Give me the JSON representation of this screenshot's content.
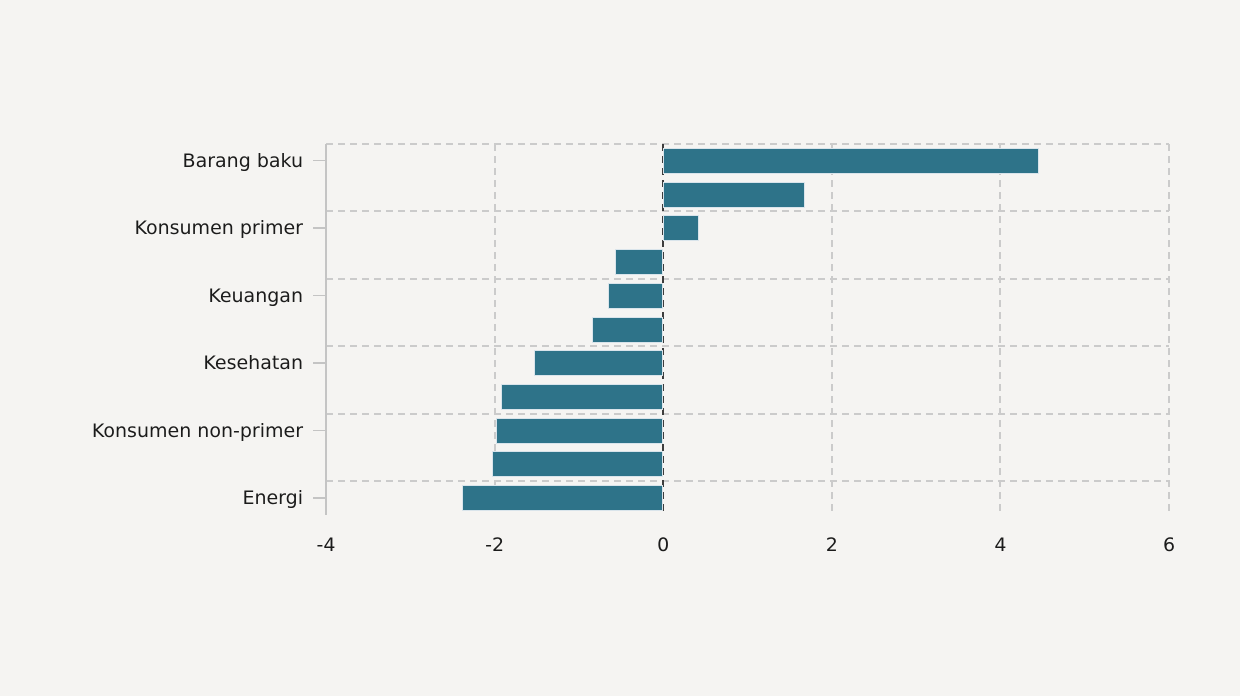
{
  "figure": {
    "background_color": "#f5f4f2",
    "text_color": "#1b1b1b",
    "gridline_color": "#cbcbcb",
    "zero_line_color": "#3d3d3d"
  },
  "chart_data": {
    "type": "bar",
    "orientation": "horizontal",
    "title": "",
    "xlabel": "",
    "ylabel": "",
    "xlim": [
      -4,
      6
    ],
    "x_ticks": [
      "-4",
      "-2",
      "0",
      "2",
      "4",
      "6"
    ],
    "x_tick_values": [
      -4,
      -2,
      0,
      2,
      4,
      6
    ],
    "grid": true,
    "zero_line": true,
    "legend": false,
    "bar_color": "#2e7389",
    "bar_edge_color": "#d9e4eb",
    "bars": [
      {
        "label": "Barang baku",
        "value": 4.46
      },
      {
        "label": "",
        "value": 1.68
      },
      {
        "label": "Konsumen primer",
        "value": 0.42
      },
      {
        "label": "",
        "value": -0.57
      },
      {
        "label": "Keuangan",
        "value": -0.66
      },
      {
        "label": "",
        "value": -0.85
      },
      {
        "label": "Kesehatan",
        "value": -1.53
      },
      {
        "label": "",
        "value": -1.93
      },
      {
        "label": "Konsumen non-primer",
        "value": -1.98
      },
      {
        "label": "",
        "value": -2.03
      },
      {
        "label": "Energi",
        "value": -2.39
      }
    ]
  }
}
